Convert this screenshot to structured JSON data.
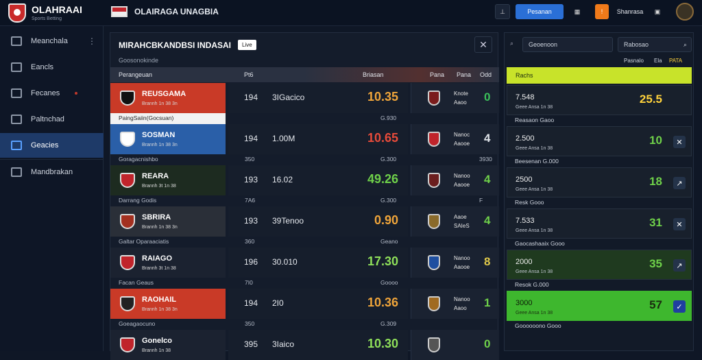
{
  "app": {
    "title": "OLAHRAAI",
    "tagline": "Sports Betting"
  },
  "header": {
    "title": "OLAIRAGA UNAGBIA",
    "button_primary": "Pesanan",
    "user_name": "Shanrasa"
  },
  "sidebar": {
    "items": [
      {
        "label": "Meanchala",
        "icon": "home-icon",
        "mark": "⋮"
      },
      {
        "label": "Eancls",
        "icon": "list-icon",
        "mark": ""
      },
      {
        "label": "Fecanes",
        "icon": "chat-icon",
        "mark": ""
      },
      {
        "label": "Paltnchad",
        "icon": "car-icon",
        "mark": ""
      },
      {
        "label": "Geacies",
        "icon": "chart-icon",
        "mark": ""
      },
      {
        "label": "Mandbrakan",
        "icon": "menu-icon",
        "mark": ""
      }
    ]
  },
  "main": {
    "title": "MIRAHCBKANDBSI INDASAI",
    "chip": "Live",
    "subtitle": "Goosonokinde",
    "cols": {
      "team": "Perangeuan",
      "n": "Pt6",
      "val": "Briasan",
      "c1": "Pana",
      "c2": "Pana",
      "c3": "Odd"
    },
    "rows": [
      {
        "team": "REUSGAMA",
        "sub": "Brannh 1n 38 3n",
        "num": "194",
        "val": "3IGacico",
        "odd": "10.35",
        "odd_color": "#f0a53a",
        "bg": "#c93a27",
        "crest": "#111",
        "opp_name": "Knote",
        "opp_sub": "Aaoo",
        "opp_num": "0",
        "opp_color": "#3bc05a",
        "ocrest": "#7a1c1c"
      },
      {
        "team": "SOSMAN",
        "sub": "Brannh 1n 38 3n",
        "num": "194",
        "val": "1.00M",
        "odd": "10.65",
        "odd_color": "#e84b3a",
        "bg": "#2a5fa8",
        "crest": "#fff",
        "opp_name": "Nanoc",
        "opp_sub": "Aaooe",
        "opp_num": "4",
        "opp_color": "#e0e4ea",
        "ocrest": "#c0242b"
      },
      {
        "team": "REARA",
        "sub": "Brannh 3t 1n 38",
        "num": "193",
        "val": "16.02",
        "odd": "49.26",
        "odd_color": "#6fd14a",
        "bg": "#1d2b20",
        "crest": "#c0242b",
        "opp_name": "Nanoo",
        "opp_sub": "Aaooe",
        "opp_num": "4",
        "opp_color": "#6fd14a",
        "ocrest": "#6b1e1e"
      },
      {
        "team": "SBRIRA",
        "sub": "Brannh 1n 38 3n",
        "num": "193",
        "val": "39Tenoo",
        "odd": "0.90",
        "odd_color": "#f0a53a",
        "bg": "#2a2f38",
        "crest": "#a33020",
        "opp_name": "Aaoe",
        "opp_sub": "SAIeS",
        "opp_num": "4",
        "opp_color": "#6fd14a",
        "ocrest": "#8a6a2a"
      },
      {
        "team": "RAIAGO",
        "sub": "Brannh 3t 1n 38",
        "num": "196",
        "val": "30.010",
        "odd": "17.30",
        "odd_color": "#8fe05a",
        "bg": "#1b2230",
        "crest": "#c0242b",
        "opp_name": "Nanoo",
        "opp_sub": "Aaooe",
        "opp_num": "8",
        "opp_color": "#e0c94a",
        "ocrest": "#1f4fa0"
      },
      {
        "team": "RAOHAIL",
        "sub": "Brannh 1n 38 3n",
        "num": "194",
        "val": "2I0",
        "odd": "10.36",
        "odd_color": "#f0a53a",
        "bg": "#c93a27",
        "crest": "#222",
        "opp_name": "Nanoo",
        "opp_sub": "Aaoo",
        "opp_num": "1",
        "opp_color": "#6fd14a",
        "ocrest": "#a06a20"
      },
      {
        "team": "Gonelco",
        "sub": "Brannh 1n 38",
        "num": "395",
        "val": "3Iaico",
        "odd": "10.30",
        "odd_color": "#8fe05a",
        "bg": "#1b2230",
        "crest": "#c0242b",
        "opp_name": "",
        "opp_sub": "",
        "opp_num": "0",
        "opp_color": "#6fd14a",
        "ocrest": "#555"
      }
    ],
    "gaps": [
      {
        "left": "PaingSaiin(Gocsuan)",
        "mid": "",
        "right": "G.930"
      },
      {
        "left": "Goragacnishbo",
        "mid": "350",
        "right": "G.300",
        "r2": "3930"
      },
      {
        "left": "Darrang  Godis",
        "mid": "7A6",
        "right": "G.300",
        "r2": "F"
      },
      {
        "left": "Galtar  Oparaaciatis",
        "mid": "360",
        "right": "Geano"
      },
      {
        "left": "Facan Geaus",
        "mid": "7I0",
        "right": "Goooo"
      },
      {
        "left": "Goeagaocuno",
        "mid": "350",
        "right": "G.309"
      }
    ]
  },
  "right": {
    "search_placeholder": "Geoenoon",
    "search2": "Rabosao",
    "hdr": {
      "left": "ES",
      "a": "Pasnalo",
      "b": "Ela",
      "c": "PATA"
    },
    "cards": [
      {
        "label": "Rachs",
        "top": "",
        "big": "",
        "highlight": true
      },
      {
        "label": "7.548",
        "sub": "Geee Ansa 1n 38",
        "big": "25.5",
        "color": "#ffd23c",
        "mark": "",
        "bg": "#18202c"
      },
      {
        "label": "2.500",
        "sub": "Geee Ansa 1n 38",
        "big": "10",
        "color": "#6fd14a",
        "mark": "✕",
        "bg": "#18202c"
      },
      {
        "label": "2500",
        "sub": "Geee Ansa 1n 38",
        "big": "18",
        "color": "#6fd14a",
        "mark": "↗",
        "bg": "#18202c"
      },
      {
        "label": "7.533",
        "sub": "Geee Ansa 1n 38",
        "big": "31",
        "color": "#6fd14a",
        "mark": "✕",
        "bg": "#18202c"
      },
      {
        "label": "2000",
        "sub": "Geee Ansa 1n 38",
        "big": "35",
        "color": "#6fd14a",
        "mark": "↗",
        "bg": "#1f3a1f"
      },
      {
        "label": "3000",
        "sub": "Geee Ansa 1n 38",
        "big": "57",
        "color": "#1b2b10",
        "mark": "✓",
        "bg": "#3eb72e"
      }
    ],
    "groups": [
      "Reasaon  Gaoo",
      "Beesenan  G.000",
      "Resk  Gooo",
      "Gaocashaaix  Gooo",
      "Resok  G.000",
      "Goooooono  Gooo"
    ]
  }
}
